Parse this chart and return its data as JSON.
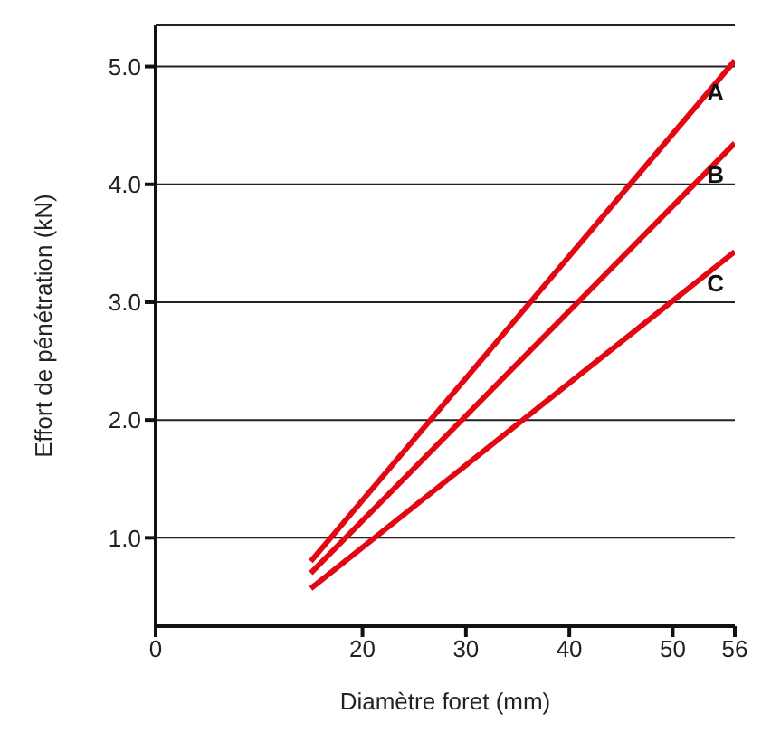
{
  "chart_data": {
    "type": "line",
    "xlabel": "Diamètre foret (mm)",
    "ylabel": "Effort de pénétration (kN)",
    "x": [
      15,
      56
    ],
    "xlim": [
      0,
      56
    ],
    "xticks": [
      0,
      20,
      30,
      40,
      50,
      56
    ],
    "ylim": [
      0.25,
      5.35
    ],
    "yticks": [
      {
        "value": 1,
        "label": "1.0"
      },
      {
        "value": 2,
        "label": "2.0"
      },
      {
        "value": 3,
        "label": "3.0"
      },
      {
        "value": 4,
        "label": "4.0"
      },
      {
        "value": 5,
        "label": "5.0"
      }
    ],
    "grid": "y",
    "legend": false,
    "marker": "none",
    "line_style": "solid",
    "series": [
      {
        "name": "A",
        "color": "#e30613",
        "values": [
          0.8,
          5.05
        ]
      },
      {
        "name": "B",
        "color": "#e30613",
        "values": [
          0.7,
          4.35
        ]
      },
      {
        "name": "C",
        "color": "#e30613",
        "values": [
          0.57,
          3.43
        ]
      }
    ]
  }
}
